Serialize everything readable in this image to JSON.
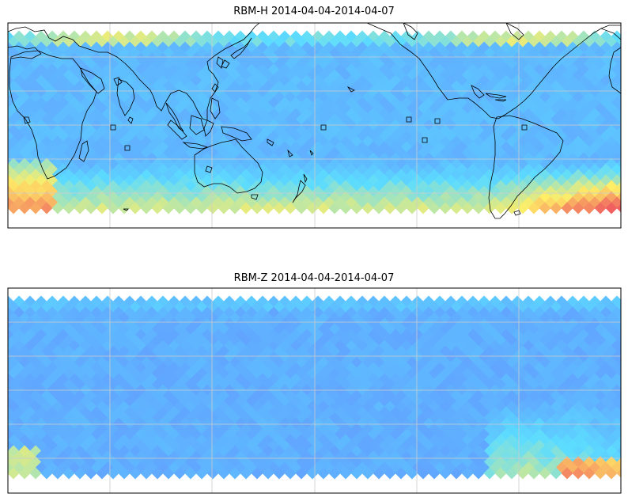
{
  "panels": [
    {
      "title": "RBM-H 2014-04-04-2014-04-07",
      "field": "H",
      "colors": {
        "low": "#6666ff",
        "mid": "#5cdcff",
        "high": "#ffee66",
        "max": "#f06060"
      }
    },
    {
      "title": "RBM-Z 2014-04-04-2014-04-07",
      "field": "Z",
      "colors": {
        "low": "#6666ff",
        "mid": "#5cdcff",
        "high": "#ffee66",
        "max": "#f06060"
      }
    }
  ],
  "colors": {
    "frame": "#000000",
    "grid": "#cccccc",
    "coast": "#000000",
    "background": "#ffffff"
  }
}
